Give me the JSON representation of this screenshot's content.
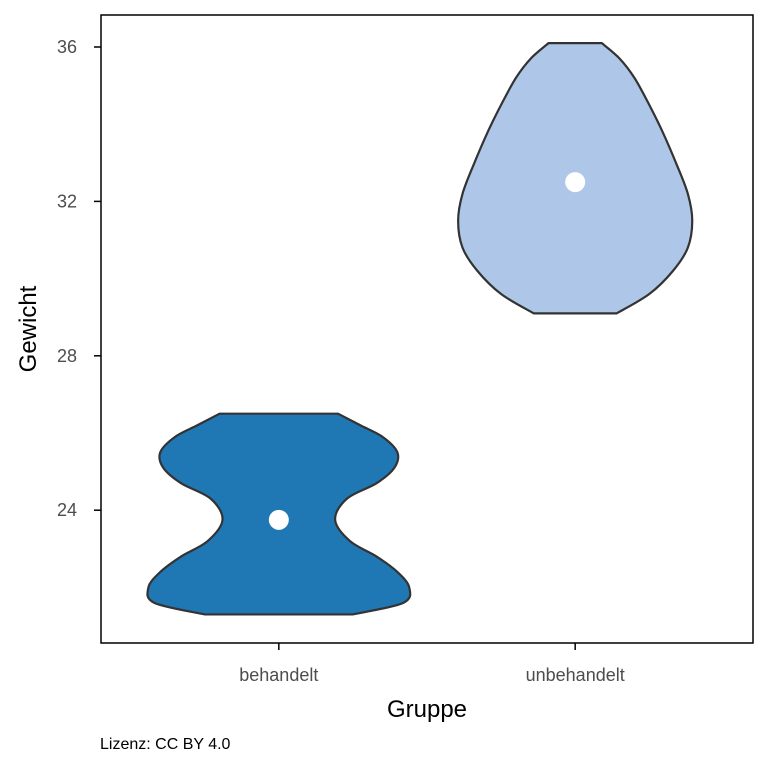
{
  "chart_data": {
    "type": "violin",
    "xlabel": "Gruppe",
    "ylabel": "Gewicht",
    "categories": [
      "behandelt",
      "unbehandelt"
    ],
    "yticks": [
      24,
      28,
      32,
      36
    ],
    "ylim": [
      20.5,
      36.8
    ],
    "groups": [
      {
        "name": "behandelt",
        "fill": "#1f77b4",
        "min": 21.3,
        "max": 26.5,
        "median": 23.75,
        "density": [
          [
            21.3,
            0.5
          ],
          [
            21.6,
            0.84
          ],
          [
            22.0,
            0.88
          ],
          [
            22.4,
            0.8
          ],
          [
            22.8,
            0.66
          ],
          [
            23.2,
            0.48
          ],
          [
            23.75,
            0.38
          ],
          [
            24.3,
            0.46
          ],
          [
            24.7,
            0.66
          ],
          [
            25.1,
            0.78
          ],
          [
            25.5,
            0.8
          ],
          [
            25.9,
            0.7
          ],
          [
            26.2,
            0.55
          ],
          [
            26.5,
            0.4
          ]
        ]
      },
      {
        "name": "unbehandelt",
        "fill": "#aec7e8",
        "min": 29.1,
        "max": 36.1,
        "median": 32.5,
        "density": [
          [
            29.1,
            0.28
          ],
          [
            29.6,
            0.5
          ],
          [
            30.2,
            0.66
          ],
          [
            30.8,
            0.76
          ],
          [
            31.5,
            0.79
          ],
          [
            32.2,
            0.76
          ],
          [
            33.0,
            0.68
          ],
          [
            33.8,
            0.59
          ],
          [
            34.5,
            0.5
          ],
          [
            35.2,
            0.4
          ],
          [
            35.7,
            0.3
          ],
          [
            36.1,
            0.18
          ]
        ]
      }
    ],
    "grid": false,
    "marker_color": "#ffffff",
    "outline_color": "#333333"
  },
  "caption": "Lizenz: CC BY 4.0"
}
